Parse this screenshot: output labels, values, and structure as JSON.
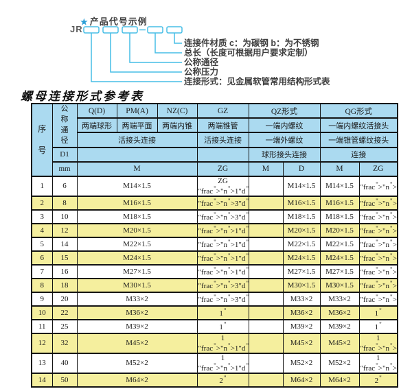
{
  "diagram": {
    "star": "★",
    "title": "产品代号示例",
    "prefix": "JR",
    "dash": "—",
    "labels": [
      "连接件材质  c：为碳钢  b：为不锈钢",
      "总长（长度可根据用户要求定制）",
      "公称通径",
      "公称压力",
      "连接形式：见金属软管常用结构形式表"
    ],
    "line_color": "#46bee6",
    "star_color": "#2b9fd6"
  },
  "table": {
    "title": "螺母连接形式参考表",
    "colors": {
      "header_bg": "#abdaf0",
      "row_bg": "#ffffff",
      "row_alt_bg": "#f5ef9e",
      "border": "#141414"
    },
    "header": {
      "seq": "序号",
      "dn": "公称通径",
      "d1": "D1",
      "mm": "mm",
      "forms": [
        {
          "code": "Q(D)",
          "desc": "两端球形"
        },
        {
          "code": "PM(A)",
          "desc": "两端平面"
        },
        {
          "code": "NZ(C)",
          "desc": "两端内锥"
        },
        {
          "code": "GZ",
          "desc": "两端锥管"
        }
      ],
      "union_connect": "活接头连接",
      "gz_connect": "活接头连接",
      "m_col": "M",
      "zg_col": "ZG",
      "qz": {
        "code": "QZ形式",
        "row2": "一端内螺纹",
        "row3": "一端外螺纹",
        "row4": "球形接头连接",
        "sub": [
          "M",
          "D"
        ]
      },
      "qg": {
        "code": "QG形式",
        "row2": "一端内螺纹活接头",
        "row3": "一端锥管螺纹接头",
        "row4": "连接",
        "sub": [
          "M",
          "ZG"
        ]
      }
    },
    "rows": [
      {
        "no": "1",
        "dn": "6",
        "m": "M14×1.5",
        "zg": "ZG 1/4\"",
        "qz_m": "",
        "qz_d": "M14×1.5",
        "qg_m": "M14×1.5",
        "qg_zg": "1/4\""
      },
      {
        "no": "2",
        "dn": "8",
        "m": "M16×1.5",
        "zg": "3/8\"",
        "qz_m": "",
        "qz_d": "M16×1.5",
        "qg_m": "M16×1.5",
        "qg_zg": "3/8\""
      },
      {
        "no": "3",
        "dn": "10",
        "m": "M18×1.5",
        "zg": "3/8\"",
        "qz_m": "",
        "qz_d": "M18×1.5",
        "qg_m": "M18×1.5",
        "qg_zg": "3/8\""
      },
      {
        "no": "4",
        "dn": "12",
        "m": "M20×1.5",
        "zg": "1/2\"",
        "qz_m": "",
        "qz_d": "M20×1.5",
        "qg_m": "M20×1.5",
        "qg_zg": "1/2\""
      },
      {
        "no": "5",
        "dn": "14",
        "m": "M22×1.5",
        "zg": "1/2\"",
        "qz_m": "",
        "qz_d": "M22×1.5",
        "qg_m": "M22×1.5",
        "qg_zg": "1/2\""
      },
      {
        "no": "6",
        "dn": "15",
        "m": "M24×1.5",
        "zg": "1/2\"",
        "qz_m": "",
        "qz_d": "M24×1.5",
        "qg_m": "M24×1.5",
        "qg_zg": "1/2\""
      },
      {
        "no": "7",
        "dn": "16",
        "m": "M27×1.5",
        "zg": "1/2\"",
        "qz_m": "",
        "qz_d": "M27×1.5",
        "qg_m": "M27×1.5",
        "qg_zg": "1/2\""
      },
      {
        "no": "8",
        "dn": "18",
        "m": "M30×1.5",
        "zg": "3/4\"",
        "qz_m": "",
        "qz_d": "M30×1.5",
        "qg_m": "M30×1.5",
        "qg_zg": "3/4\""
      },
      {
        "no": "9",
        "dn": "20",
        "m": "M33×2",
        "zg": "3/4\"",
        "qz_m": "",
        "qz_d": "M33×2",
        "qg_m": "M33×2",
        "qg_zg": "3/4\""
      },
      {
        "no": "10",
        "dn": "22",
        "m": "M36×2",
        "zg": "1\"",
        "qz_m": "",
        "qz_d": "M36×2",
        "qg_m": "M36×2",
        "qg_zg": "1\""
      },
      {
        "no": "11",
        "dn": "25",
        "m": "M39×2",
        "zg": "1\"",
        "qz_m": "",
        "qz_d": "M39×2",
        "qg_m": "M39×2",
        "qg_zg": "1\""
      },
      {
        "no": "12",
        "dn": "32",
        "m": "M45×2",
        "zg": "1 1/4\"",
        "qz_m": "",
        "qz_d": "M45×2",
        "qg_m": "M45×2",
        "qg_zg": "1 1/4\""
      },
      {
        "no": "13",
        "dn": "40",
        "m": "M52×2",
        "zg": "1 1/2\"",
        "qz_m": "",
        "qz_d": "M52×2",
        "qg_m": "M52×2",
        "qg_zg": "1 1/2\""
      },
      {
        "no": "14",
        "dn": "50",
        "m": "M64×2",
        "zg": "2\"",
        "qz_m": "",
        "qz_d": "M64×2",
        "qg_m": "M64×2",
        "qg_zg": "2\""
      }
    ]
  }
}
